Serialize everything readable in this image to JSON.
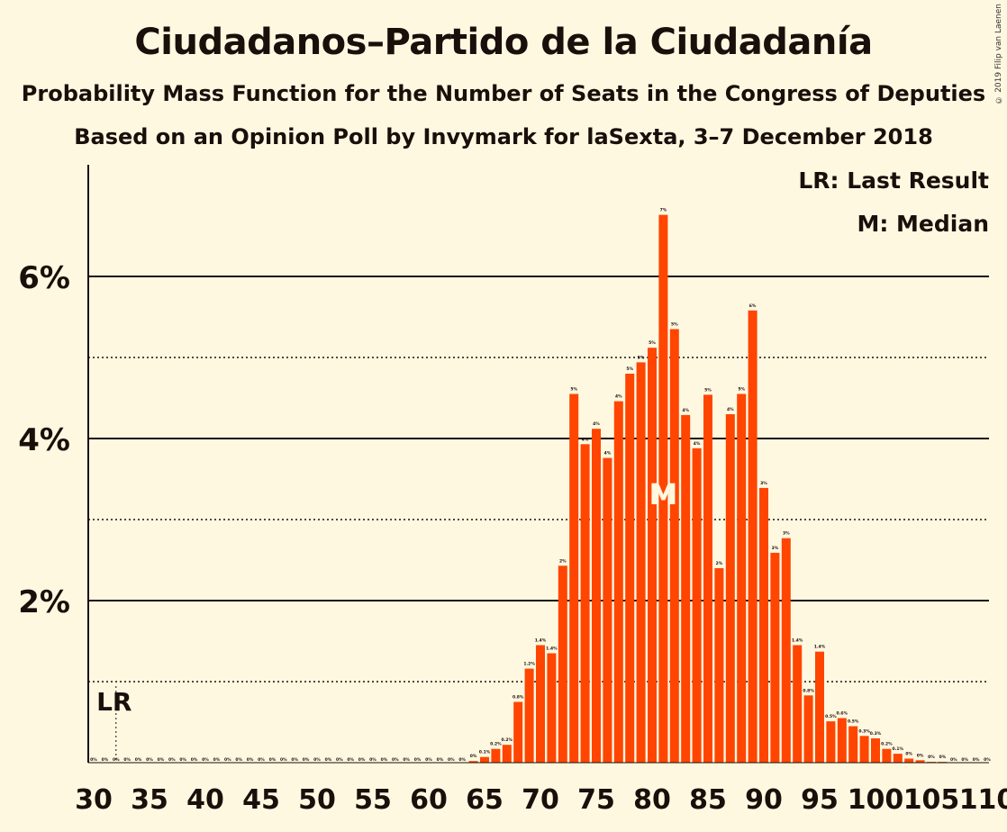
{
  "title": "Ciudadanos–Partido de la Ciudadanía",
  "subtitle": "Probability Mass Function for the Number of Seats in the Congress of Deputies",
  "subtitle2": "Based on an Opinion Poll by Invymark for laSexta, 3–7 December 2018",
  "copyright": "© 2019 Filip van Laenen",
  "legend": {
    "last_result": "LR: Last Result",
    "median": "M: Median"
  },
  "markers": {
    "last_result_label": "LR",
    "median_label": "M",
    "last_result_seat": 32,
    "median_seat": 81
  },
  "colors": {
    "bar": "#FF4500",
    "background": "#FFF8E1",
    "text": "#1a0f0a"
  },
  "chart_data": {
    "type": "bar",
    "x_range": [
      30,
      110
    ],
    "x_ticks": [
      30,
      35,
      40,
      45,
      50,
      55,
      60,
      65,
      70,
      75,
      80,
      85,
      90,
      95,
      100,
      105,
      110
    ],
    "x_tick_labels": [
      "30",
      "35",
      "40",
      "45",
      "50",
      "55",
      "60",
      "65",
      "70",
      "75",
      "80",
      "85",
      "90",
      "95",
      "100",
      "105",
      "110"
    ],
    "ylim": [
      0,
      7.4
    ],
    "y_ticks_labeled": [
      2,
      4,
      6
    ],
    "y_tick_labels": [
      "2%",
      "4%",
      "6%"
    ],
    "y_gridlines_dotted": [
      1,
      3,
      5
    ],
    "seats": [
      30,
      31,
      32,
      33,
      34,
      35,
      36,
      37,
      38,
      39,
      40,
      41,
      42,
      43,
      44,
      45,
      46,
      47,
      48,
      49,
      50,
      51,
      52,
      53,
      54,
      55,
      56,
      57,
      58,
      59,
      60,
      61,
      62,
      63,
      64,
      65,
      66,
      67,
      68,
      69,
      70,
      71,
      72,
      73,
      74,
      75,
      76,
      77,
      78,
      79,
      80,
      81,
      82,
      83,
      84,
      85,
      86,
      87,
      88,
      89,
      90,
      91,
      92,
      93,
      94,
      95,
      96,
      97,
      98,
      99,
      100,
      101,
      102,
      103,
      104,
      105,
      106,
      107,
      108,
      109,
      110
    ],
    "values": [
      0,
      0,
      0,
      0,
      0,
      0,
      0,
      0,
      0,
      0,
      0,
      0,
      0,
      0,
      0,
      0,
      0,
      0,
      0,
      0,
      0,
      0,
      0,
      0,
      0,
      0,
      0,
      0,
      0,
      0,
      0,
      0,
      0,
      0,
      0.02,
      0.07,
      0.17,
      0.22,
      0.75,
      1.16,
      1.45,
      1.35,
      2.43,
      4.55,
      3.93,
      4.12,
      3.76,
      4.46,
      4.8,
      4.94,
      5.12,
      6.76,
      5.35,
      4.29,
      3.88,
      4.54,
      2.4,
      4.3,
      4.55,
      5.58,
      3.39,
      2.59,
      2.77,
      1.45,
      0.83,
      1.37,
      0.51,
      0.55,
      0.45,
      0.33,
      0.3,
      0.17,
      0.11,
      0.05,
      0.03,
      0.01,
      0.01,
      0,
      0,
      0,
      0
    ],
    "value_labels": [
      "0%",
      "0%",
      "0%",
      "0%",
      "0%",
      "0%",
      "0%",
      "0%",
      "0%",
      "0%",
      "0%",
      "0%",
      "0%",
      "0%",
      "0%",
      "0%",
      "0%",
      "0%",
      "0%",
      "0%",
      "0%",
      "0%",
      "0%",
      "0%",
      "0%",
      "0%",
      "0%",
      "0%",
      "0%",
      "0%",
      "0%",
      "0%",
      "0%",
      "0%",
      "0%",
      "0.1%",
      "0.2%",
      "0.2%",
      "0.8%",
      "1.2%",
      "1.4%",
      "1.4%",
      "2%",
      "5%",
      "4%",
      "4%",
      "4%",
      "4%",
      "5%",
      "5%",
      "5%",
      "7%",
      "5%",
      "4%",
      "4%",
      "5%",
      "2%",
      "4%",
      "5%",
      "6%",
      "3%",
      "3%",
      "3%",
      "1.4%",
      "0.8%",
      "1.4%",
      "0.5%",
      "0.6%",
      "0.5%",
      "0.3%",
      "0.3%",
      "0.2%",
      "0.1%",
      "0%",
      "0%",
      "0%",
      "0%",
      "0%",
      "0%",
      "0%",
      "0%"
    ]
  }
}
